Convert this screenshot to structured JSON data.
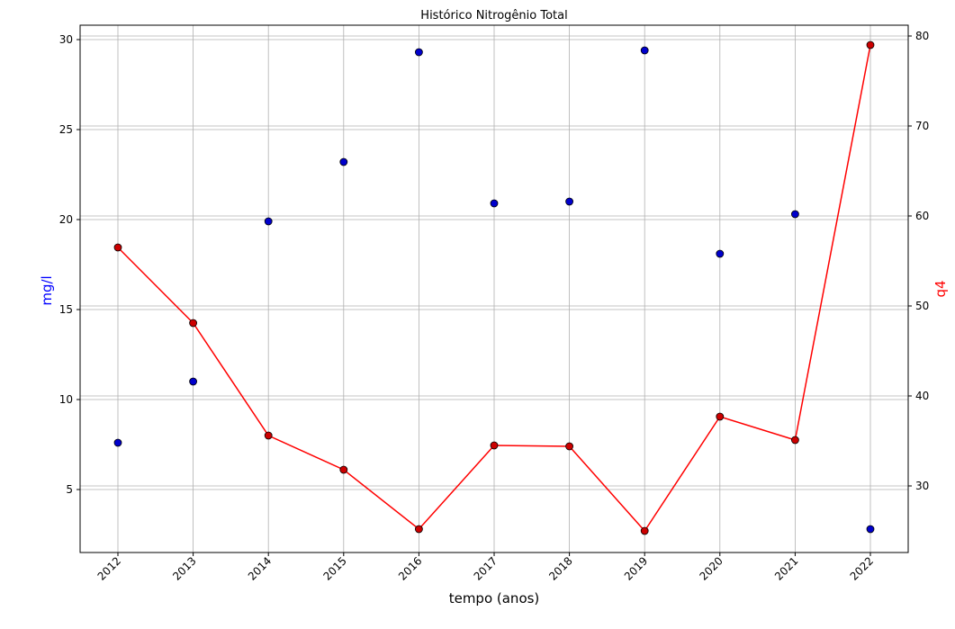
{
  "chart_data": {
    "type": "scatter+line",
    "title": "Histórico Nitrogênio Total",
    "xlabel": "tempo (anos)",
    "ylabel_left": "mg/l",
    "ylabel_right": "q4",
    "x_categories": [
      "2012",
      "2013",
      "2014",
      "2015",
      "2016",
      "2017",
      "2018",
      "2019",
      "2020",
      "2021",
      "2022"
    ],
    "left_axis": {
      "ylim": [
        1.5,
        30.8
      ],
      "ticks": [
        5,
        10,
        15,
        20,
        25,
        30
      ]
    },
    "right_axis": {
      "ylim": [
        22.6,
        81.2
      ],
      "ticks": [
        30,
        40,
        50,
        60,
        70,
        80
      ]
    },
    "series": [
      {
        "name": "mg/l",
        "axis": "left",
        "style": "scatter",
        "color": "#0000cc",
        "values": [
          7.6,
          11.0,
          19.9,
          23.2,
          29.3,
          20.9,
          21.0,
          29.4,
          18.1,
          20.3,
          2.8
        ]
      },
      {
        "name": "q4",
        "axis": "right",
        "style": "line-markers",
        "color": "#ff0000",
        "values": [
          56.5,
          48.1,
          35.6,
          31.8,
          25.2,
          34.5,
          34.4,
          25.0,
          37.7,
          35.1,
          79.0
        ]
      }
    ],
    "grid": true,
    "colors": {
      "left_label": "#0000ff",
      "right_label": "#ff0000",
      "line": "#ff0000",
      "point_left": "#0000cc",
      "point_right": "#cc0000"
    }
  }
}
